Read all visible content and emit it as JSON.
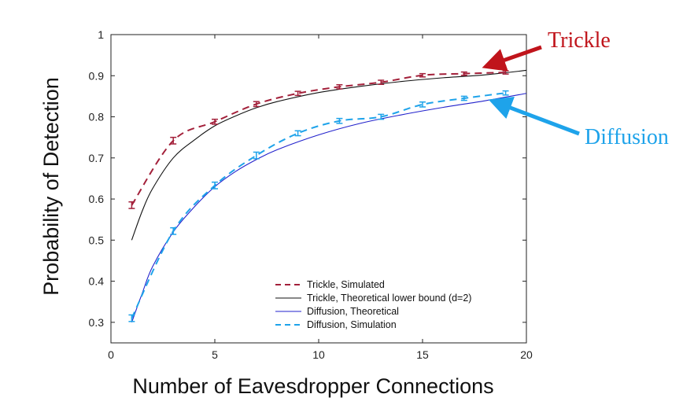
{
  "chart_data": {
    "type": "line",
    "xlabel": "Number of Eavesdropper Connections",
    "ylabel": "Probability of Detection",
    "xlim": [
      0,
      20
    ],
    "ylim": [
      0.25,
      1.0
    ],
    "xticks": [
      0,
      5,
      10,
      15,
      20
    ],
    "yticks": [
      0.3,
      0.4,
      0.5,
      0.6,
      0.7,
      0.8,
      0.9,
      1
    ],
    "xtick_labels": [
      "0",
      "5",
      "10",
      "15",
      "20"
    ],
    "ytick_labels": [
      "0.3",
      "0.4",
      "0.5",
      "0.6",
      "0.7",
      "0.8",
      "0.9",
      "1"
    ],
    "grid": false,
    "legend_placement": "bottom-right",
    "series": [
      {
        "name": "Trickle, Simulated",
        "color": "#a3203a",
        "style": "dashed",
        "x": [
          1,
          3,
          5,
          7,
          9,
          11,
          13,
          15,
          17,
          19
        ],
        "y": [
          0.585,
          0.742,
          0.788,
          0.831,
          0.857,
          0.873,
          0.884,
          0.901,
          0.905,
          0.908
        ],
        "err": [
          0.008,
          0.008,
          0.006,
          0.006,
          0.005,
          0.005,
          0.005,
          0.004,
          0.004,
          0.004
        ]
      },
      {
        "name": "Trickle, Theoretical lower bound (d=2)",
        "color": "#111111",
        "style": "solid",
        "x": [
          1,
          1.5,
          2,
          3,
          4,
          5,
          6,
          7,
          8,
          10,
          12,
          14,
          16,
          18,
          20
        ],
        "y": [
          0.5,
          0.57,
          0.625,
          0.7,
          0.743,
          0.778,
          0.802,
          0.822,
          0.837,
          0.859,
          0.874,
          0.886,
          0.895,
          0.902,
          0.913
        ]
      },
      {
        "name": "Diffusion, Theoretical",
        "color": "#2222cc",
        "style": "solid",
        "x": [
          1,
          1.5,
          2,
          3,
          4,
          5,
          6,
          7,
          8,
          10,
          12,
          14,
          16,
          18,
          20
        ],
        "y": [
          0.3,
          0.37,
          0.435,
          0.52,
          0.58,
          0.63,
          0.667,
          0.696,
          0.72,
          0.756,
          0.784,
          0.805,
          0.823,
          0.839,
          0.857
        ]
      },
      {
        "name": "Diffusion, Simulation",
        "color": "#1ea3ea",
        "style": "dashed",
        "x": [
          1,
          3,
          5,
          7,
          9,
          11,
          13,
          15,
          17,
          19
        ],
        "y": [
          0.31,
          0.522,
          0.633,
          0.706,
          0.76,
          0.79,
          0.8,
          0.83,
          0.845,
          0.858
        ],
        "err": [
          0.008,
          0.008,
          0.008,
          0.008,
          0.006,
          0.006,
          0.006,
          0.006,
          0.005,
          0.005
        ]
      }
    ],
    "annotations": [
      {
        "text": "Trickle",
        "color": "#c0141b",
        "points_to": [
          17.5,
          0.905
        ]
      },
      {
        "text": "Diffusion",
        "color": "#1ea3ea",
        "points_to": [
          18,
          0.84
        ]
      }
    ]
  }
}
